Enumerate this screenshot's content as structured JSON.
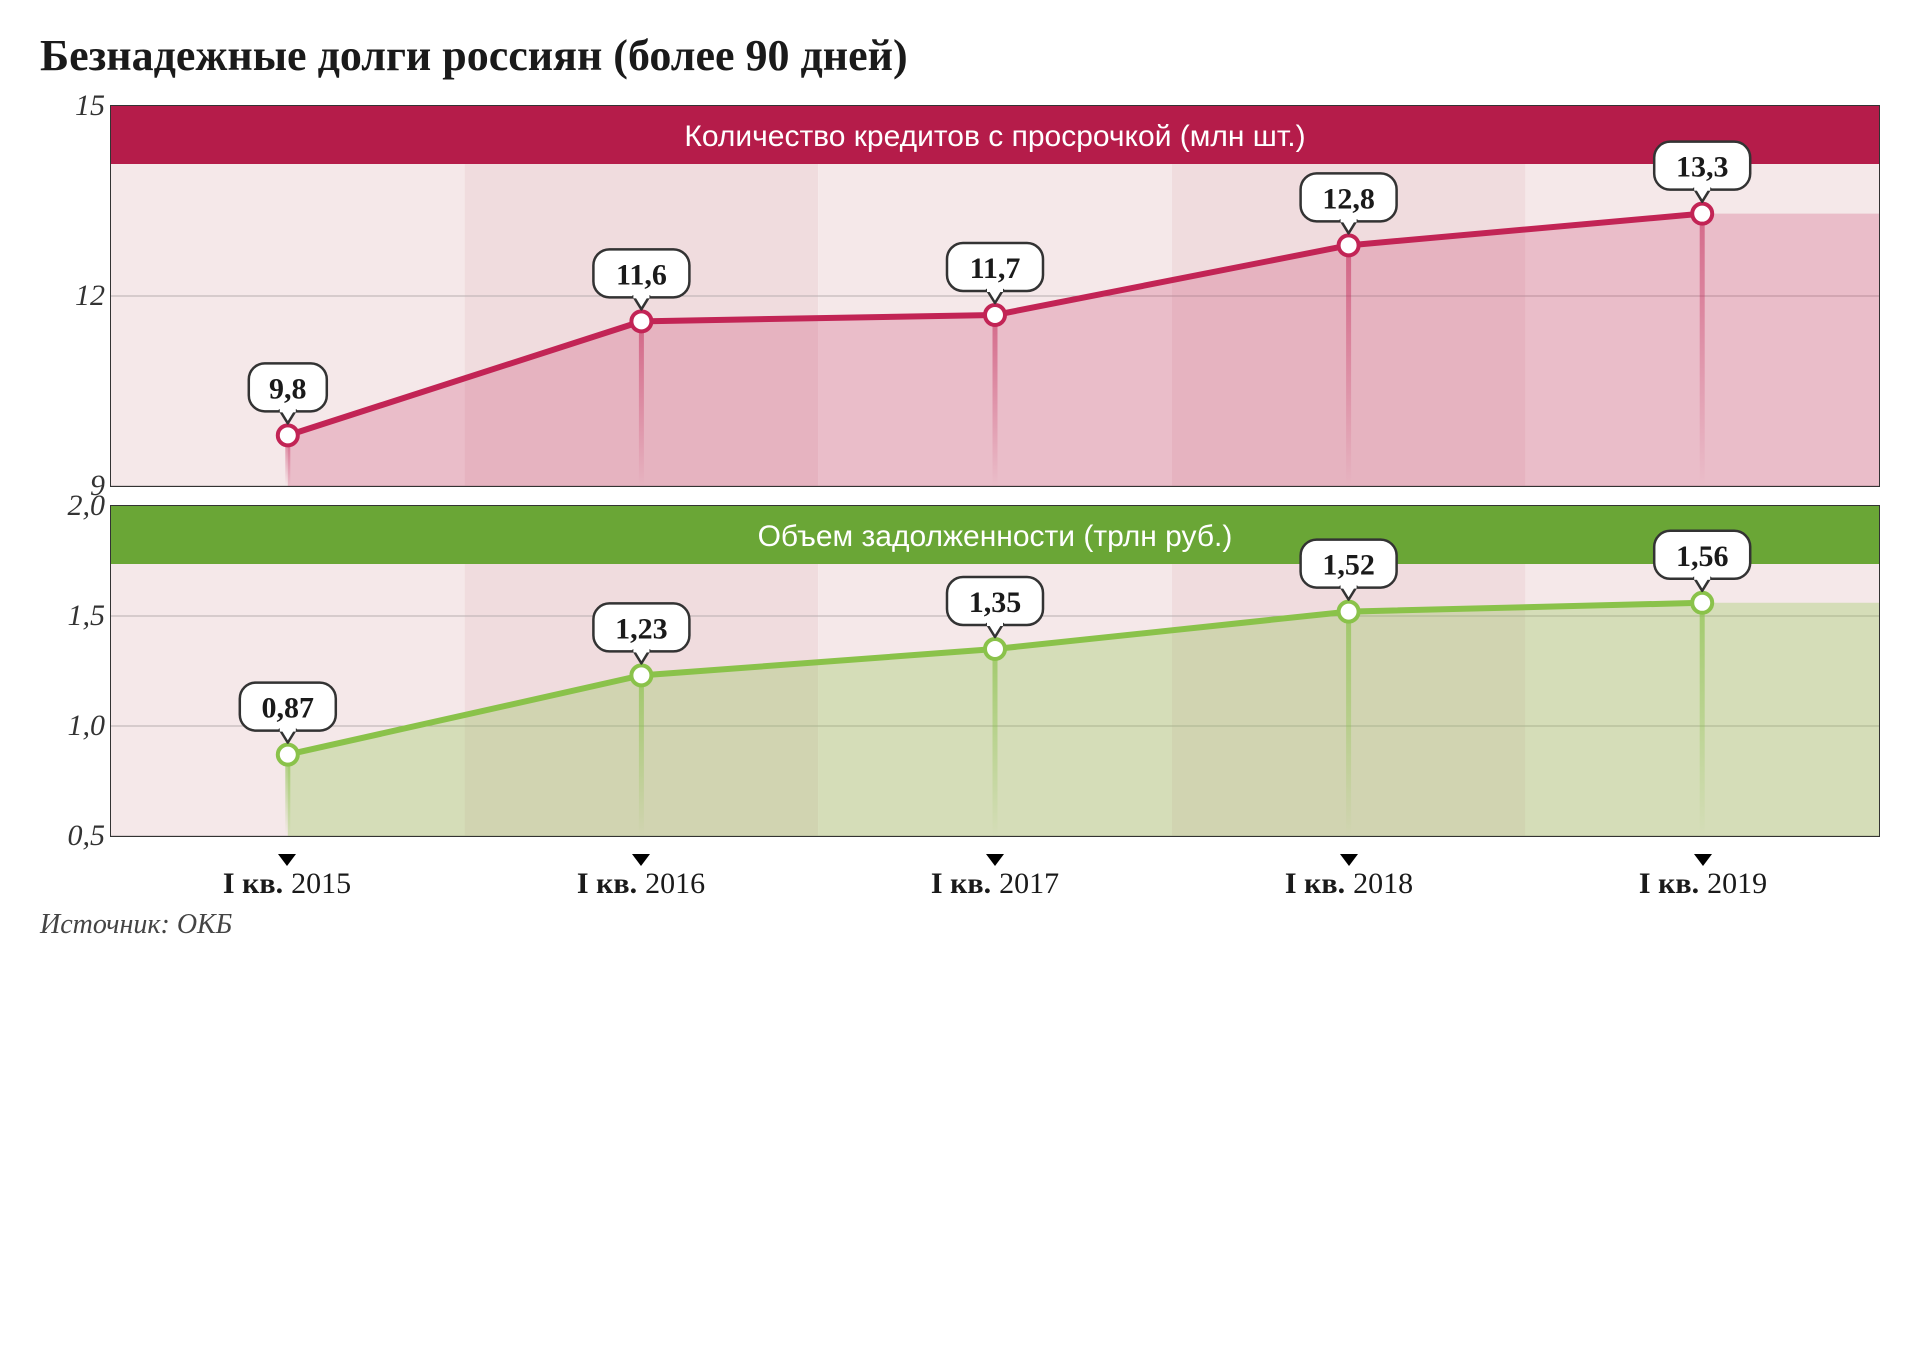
{
  "title": "Безнадежные долги россиян (более 90 дней)",
  "source": "Источник: ОКБ",
  "x_labels": [
    "I кв. 2015",
    "I кв. 2016",
    "I кв. 2017",
    "I кв. 2018",
    "I кв. 2019"
  ],
  "layout": {
    "page_bg": "#ffffff",
    "title_fontsize": 44,
    "axis_fontsize": 30,
    "value_label_fontsize": 30,
    "chart_border_color": "#333333",
    "x_tick_color": "#000000"
  },
  "charts": [
    {
      "id": "loans",
      "type": "area-line",
      "header": "Количество кредитов с просрочкой (млн шт.)",
      "header_bg": "#b51c4a",
      "line_color": "#c22455",
      "line_width": 6,
      "point_fill": "#ffffff",
      "point_stroke": "#c22455",
      "point_radius": 10,
      "point_stroke_width": 4,
      "area_fill": "#c22455",
      "area_opacity": 0.22,
      "drop_line_color": "#c22455",
      "drop_line_opacity": 0.55,
      "drop_line_width": 5,
      "body_height": 380,
      "header_top_offset_ratio": 0.155,
      "col_tints": [
        "#f5e8e9",
        "#f0dcde",
        "#f5e8e9",
        "#f0dcde",
        "#f5e8e9"
      ],
      "y_ticks": [
        9,
        12,
        15
      ],
      "ylim": [
        9,
        15
      ],
      "values": [
        9.8,
        11.6,
        11.7,
        12.8,
        13.3
      ],
      "value_labels": [
        "9,8",
        "11,6",
        "11,7",
        "12,8",
        "13,3"
      ],
      "tooltip_bg": "#ffffff",
      "tooltip_border": "#333333"
    },
    {
      "id": "volume",
      "type": "area-line",
      "header": "Объем задолженности (трлн руб.)",
      "header_bg": "#6aa636",
      "line_color": "#8ac24a",
      "line_width": 6,
      "point_fill": "#ffffff",
      "point_stroke": "#8ac24a",
      "point_radius": 10,
      "point_stroke_width": 4,
      "area_fill": "#8ac24a",
      "area_opacity": 0.3,
      "drop_line_color": "#8ac24a",
      "drop_line_opacity": 0.7,
      "drop_line_width": 5,
      "body_height": 330,
      "header_top_offset_ratio": 0.18,
      "col_tints": [
        "#f5e8e9",
        "#f0dcde",
        "#f5e8e9",
        "#f0dcde",
        "#f5e8e9"
      ],
      "y_ticks": [
        0.5,
        1.0,
        1.5,
        2.0
      ],
      "y_tick_labels": [
        "0,5",
        "1,0",
        "1,5",
        "2,0"
      ],
      "ylim": [
        0.5,
        2.0
      ],
      "values": [
        0.87,
        1.23,
        1.35,
        1.52,
        1.56
      ],
      "value_labels": [
        "0,87",
        "1,23",
        "1,35",
        "1,52",
        "1,56"
      ],
      "tooltip_bg": "#ffffff",
      "tooltip_border": "#333333"
    }
  ]
}
